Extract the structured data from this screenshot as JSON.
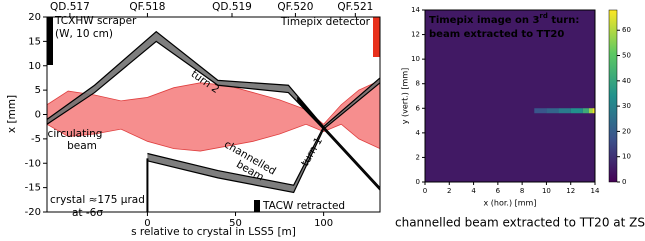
{
  "charts": [
    {
      "type": "band",
      "xlabel": "s relative to crystal in LSS5 [m]",
      "ylabel": "x [mm]",
      "xlim": [
        -57,
        132
      ],
      "ylim": [
        -20,
        20
      ],
      "xticks": [
        0,
        50,
        100
      ],
      "yticks": [
        -20,
        -15,
        -10,
        -5,
        0,
        5,
        10,
        15,
        20
      ],
      "quads": [
        {
          "label": "QD.517",
          "s": -44
        },
        {
          "label": "QF.518",
          "s": 0
        },
        {
          "label": "QD.519",
          "s": 48
        },
        {
          "label": "QF.520",
          "s": 84
        },
        {
          "label": "QF.521",
          "s": 118
        }
      ],
      "series": [
        {
          "label": [
            "circulating",
            "beam"
          ],
          "color": "#f47272",
          "x": [
            -57,
            -45,
            -30,
            -15,
            0,
            15,
            30,
            45,
            60,
            75,
            90,
            100,
            110,
            120,
            132
          ],
          "upper": [
            2,
            4.8,
            4,
            2.8,
            3.5,
            5.5,
            6.5,
            6,
            4.5,
            3,
            1,
            -2,
            2,
            5,
            7
          ],
          "lower": [
            -2,
            -4.5,
            -4,
            -3,
            -5.5,
            -7,
            -7.5,
            -6.5,
            -5.5,
            -4,
            -2,
            -3.5,
            -2,
            -5,
            -7
          ]
        },
        {
          "label": [
            "turn 2"
          ],
          "color": "#707070",
          "x": [
            -57,
            -30,
            5,
            40,
            80,
            100
          ],
          "upper": [
            -1,
            6,
            17,
            7,
            6,
            -2.5
          ],
          "lower": [
            -2,
            4.5,
            15,
            6,
            4.5,
            -3
          ]
        },
        {
          "label": [
            "channelled",
            "beam"
          ],
          "color": "#707070",
          "x": [
            0,
            40,
            83,
            100,
            132
          ],
          "upper": [
            -8,
            -11.5,
            -14.5,
            -2.5,
            7.5
          ],
          "lower": [
            -9.5,
            -13,
            -16,
            -3,
            6.5
          ]
        },
        {
          "label": [
            "turn 1"
          ],
          "color": "#000000",
          "x": [
            85,
            100,
            132
          ],
          "upper": [
            3.5,
            -2.5,
            -15
          ],
          "lower": [
            3,
            -3,
            -15.5
          ]
        }
      ],
      "notes": {
        "scraper": [
          "TCXHW scraper",
          "(W, 10 cm)"
        ],
        "detector": "Timepix detector",
        "crystal": [
          "crystal ≈175 μrad",
          "at -6σ"
        ],
        "tacw": "TACW retracted"
      }
    },
    {
      "type": "heatmap",
      "title": [
        "Timepix image on 3",
        "rd",
        " turn:",
        "beam extracted to TT20"
      ],
      "xlabel": "x (hor.) [mm]",
      "ylabel": "y (vert.) [mm]",
      "xlim": [
        0,
        14
      ],
      "ylim": [
        0,
        14
      ],
      "xticks": [
        0,
        2,
        4,
        6,
        8,
        10,
        12,
        14
      ],
      "yticks": [
        0,
        2,
        4,
        6,
        8,
        10,
        12,
        14
      ],
      "background": 5,
      "beam_y": 5.8,
      "beam_x": [
        9,
        10,
        11,
        12,
        13,
        13.5,
        13.8
      ],
      "beam_values": [
        18,
        22,
        28,
        34,
        42,
        58,
        66
      ],
      "clim": [
        0,
        68
      ],
      "cticks": [
        0,
        10,
        20,
        30,
        40,
        50,
        60
      ],
      "caption": "channelled beam extracted to TT20 at ZS"
    }
  ]
}
